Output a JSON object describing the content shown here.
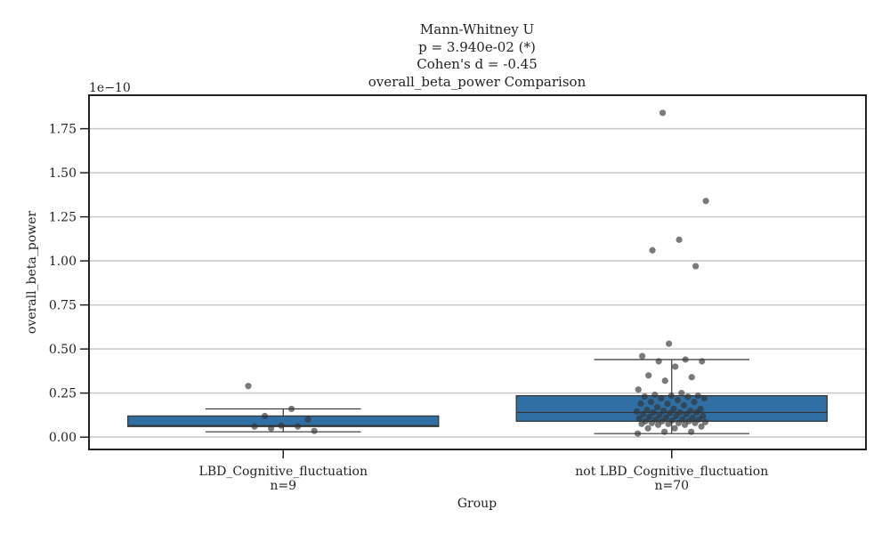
{
  "chart_data": {
    "type": "box",
    "title_lines": [
      "Mann-Whitney U",
      "p = 3.940e-02 (*)",
      "Cohen's d = -0.45",
      "overall_beta_power Comparison"
    ],
    "xlabel": "Group",
    "ylabel": "overall_beta_power",
    "y_offset_label": "1e−10",
    "y_scale": 1e-10,
    "ylim": [
      -0.07,
      1.94
    ],
    "yticks": [
      0.0,
      0.25,
      0.5,
      0.75,
      1.0,
      1.25,
      1.5,
      1.75
    ],
    "ytick_labels": [
      "0.00",
      "0.25",
      "0.50",
      "0.75",
      "1.00",
      "1.25",
      "1.50",
      "1.75"
    ],
    "grid": "horizontal",
    "box_color": "#2f6fa3",
    "point_color": "#333333",
    "groups": [
      {
        "name": "LBD_Cognitive_fluctuation",
        "n_label": "n=9",
        "whislo": 0.03,
        "q1": 0.06,
        "median": 0.065,
        "q3": 0.12,
        "whishi": 0.16,
        "points": [
          0.29,
          0.16,
          0.12,
          0.1,
          0.065,
          0.06,
          0.06,
          0.05,
          0.035
        ]
      },
      {
        "name": "not LBD_Cognitive_fluctuation",
        "n_label": "n=70",
        "whislo": 0.02,
        "q1": 0.09,
        "median": 0.14,
        "q3": 0.235,
        "whishi": 0.44,
        "points": [
          1.84,
          1.34,
          1.12,
          1.06,
          0.97,
          0.53,
          0.46,
          0.44,
          0.43,
          0.43,
          0.4,
          0.35,
          0.34,
          0.32,
          0.27,
          0.25,
          0.24,
          0.235,
          0.235,
          0.23,
          0.23,
          0.22,
          0.22,
          0.21,
          0.2,
          0.2,
          0.19,
          0.19,
          0.18,
          0.17,
          0.16,
          0.16,
          0.155,
          0.15,
          0.15,
          0.145,
          0.14,
          0.14,
          0.14,
          0.135,
          0.13,
          0.13,
          0.125,
          0.12,
          0.12,
          0.115,
          0.11,
          0.11,
          0.105,
          0.1,
          0.1,
          0.1,
          0.095,
          0.09,
          0.09,
          0.09,
          0.085,
          0.08,
          0.08,
          0.08,
          0.075,
          0.075,
          0.07,
          0.07,
          0.06,
          0.05,
          0.05,
          0.03,
          0.03,
          0.02
        ]
      }
    ]
  }
}
